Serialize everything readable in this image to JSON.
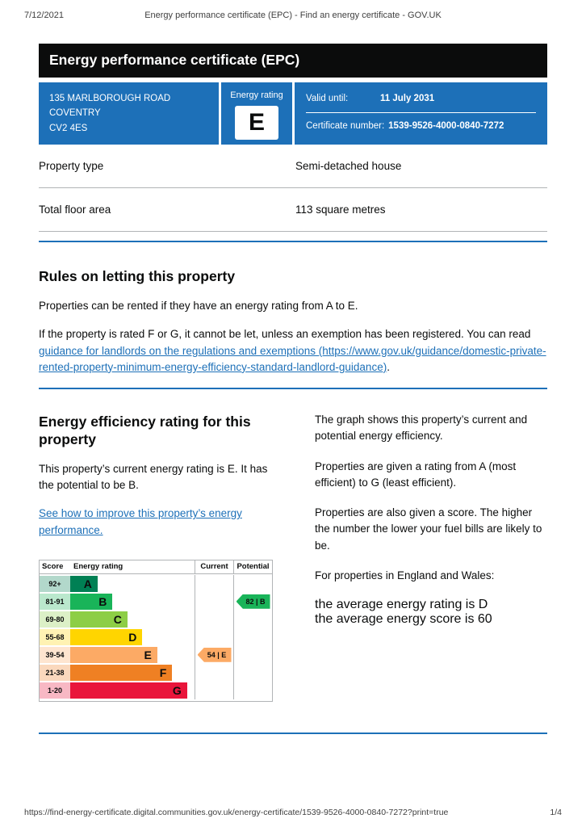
{
  "print_header": {
    "date": "7/12/2021",
    "title": "Energy performance certificate (EPC) - Find an energy certificate - GOV.UK"
  },
  "banner": {
    "title": "Energy performance certificate (EPC)"
  },
  "certificate": {
    "address_line1": "135 MARLBOROUGH ROAD",
    "address_line2": "COVENTRY",
    "address_line3": "CV2 4ES",
    "energy_rating_label": "Energy rating",
    "energy_rating": "E",
    "valid_until_label": "Valid until:",
    "valid_until": "11 July 2031",
    "certificate_number_label": "Certificate number:",
    "certificate_number": "1539-9526-4000-0840-7272"
  },
  "property_details": {
    "rows": [
      {
        "label": "Property type",
        "value": "Semi-detached house"
      },
      {
        "label": "Total floor area",
        "value": "113 square metres"
      }
    ]
  },
  "rules": {
    "heading": "Rules on letting this property",
    "para1": "Properties can be rented if they have an energy rating from A to E.",
    "para2_prefix": "If the property is rated F or G, it cannot be let, unless an exemption has been registered. You can read ",
    "para2_link": "guidance for landlords on the regulations and exemptions (https://www.gov.uk/guidance/domestic-private-rented-property-minimum-energy-efficiency-standard-landlord-guidance)",
    "para2_suffix": "."
  },
  "rating_section": {
    "heading": "Energy efficiency rating for this property",
    "para1": "This property’s current energy rating is E. It has the potential to be B.",
    "improve_link": "See how to improve this property’s energy performance."
  },
  "explainer": {
    "para1": "The graph shows this property’s current and potential energy efficiency.",
    "para2": "Properties are given a rating from A (most efficient) to G (least efficient).",
    "para3": "Properties are also given a score. The higher the number the lower your fuel bills are likely to be.",
    "para4": "For properties in England and Wales:",
    "avg_rating": "the average energy rating is D",
    "avg_score": "the average energy score is 60"
  },
  "chart_data": {
    "type": "bar",
    "title": "Energy efficiency rating",
    "columns": [
      "Score",
      "Energy rating",
      "Current",
      "Potential"
    ],
    "bands": [
      {
        "score": "92+",
        "letter": "A",
        "color": "#008054",
        "tint": "#b2d8cb",
        "width_pct": 22
      },
      {
        "score": "81-91",
        "letter": "B",
        "color": "#19b459",
        "tint": "#bae8cd",
        "width_pct": 34
      },
      {
        "score": "69-80",
        "letter": "C",
        "color": "#8dce46",
        "tint": "#dcf0c7",
        "width_pct": 46
      },
      {
        "score": "55-68",
        "letter": "D",
        "color": "#ffd500",
        "tint": "#fff2b3",
        "width_pct": 58
      },
      {
        "score": "39-54",
        "letter": "E",
        "color": "#fcaa65",
        "tint": "#fee5d0",
        "width_pct": 70
      },
      {
        "score": "21-38",
        "letter": "F",
        "color": "#ef8023",
        "tint": "#fad8bd",
        "width_pct": 82
      },
      {
        "score": "1-20",
        "letter": "G",
        "color": "#e9153b",
        "tint": "#f8b8c4",
        "width_pct": 94
      }
    ],
    "current": {
      "score": 54,
      "letter": "E",
      "label": "54 |  E",
      "band_index": 4,
      "color": "#fcaa65"
    },
    "potential": {
      "score": 82,
      "letter": "B",
      "label": "82 |  B",
      "band_index": 1,
      "color": "#19b459"
    }
  },
  "colors": {
    "govuk_blue": "#1d70b8",
    "banner_black": "#0b0c0c",
    "border_grey": "#b1b4b6"
  },
  "footer": {
    "url": "https://find-energy-certificate.digital.communities.gov.uk/energy-certificate/1539-9526-4000-0840-7272?print=true",
    "page": "1/4"
  }
}
